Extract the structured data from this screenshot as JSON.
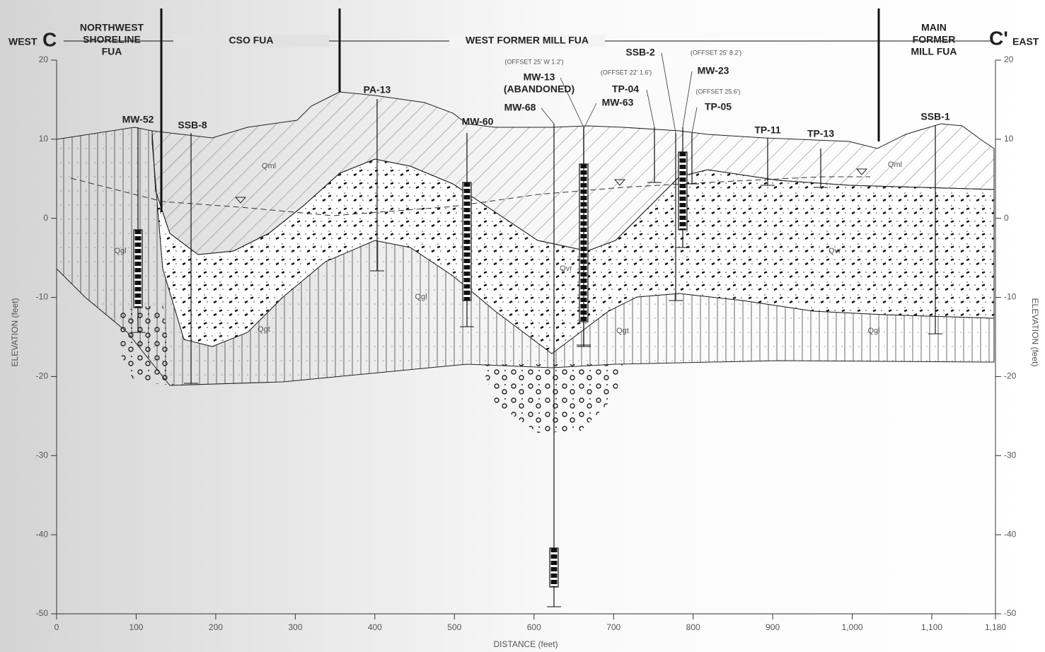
{
  "header": {
    "west": "WEST",
    "section_start": "C",
    "section_end": "C'",
    "east": "EAST"
  },
  "zones": [
    {
      "lines": [
        "NORTHWEST",
        "SHORELINE",
        "FUA"
      ]
    },
    {
      "lines": [
        "CSO FUA"
      ]
    },
    {
      "lines": [
        "WEST FORMER MILL FUA"
      ]
    },
    {
      "lines": [
        "MAIN",
        "FORMER",
        "MILL FUA"
      ]
    }
  ],
  "borings": [
    {
      "lines": [
        "MW-52"
      ]
    },
    {
      "lines": [
        "SSB-8"
      ]
    },
    {
      "lines": [
        "PA-13"
      ]
    },
    {
      "lines": [
        "MW-60"
      ]
    },
    {
      "lines": [
        "MW-68"
      ]
    },
    {
      "lines": [
        "MW-13",
        "(ABANDONED)"
      ]
    },
    {
      "lines": [
        "MW-63"
      ]
    },
    {
      "lines": [
        "TP-04"
      ]
    },
    {
      "lines": [
        "SSB-2"
      ]
    },
    {
      "lines": [
        "MW-23"
      ]
    },
    {
      "lines": [
        "TP-05"
      ]
    },
    {
      "lines": [
        "TP-11"
      ]
    },
    {
      "lines": [
        "TP-13"
      ]
    },
    {
      "lines": [
        "SSB-1"
      ]
    }
  ],
  "notes": [
    "(OFFSET 25' W 1.2')",
    "(OFFSET 22' 1.6')",
    "(OFFSET 25' 8.2')",
    "(OFFSET 25.6')"
  ],
  "units": [
    "Qml",
    "Qml",
    "Qgl",
    "Qgl",
    "Qgl",
    "Qvr",
    "Qvr",
    "Qgt",
    "Qgt"
  ],
  "axes": {
    "y_label": "ELEVATION (feet)",
    "x_label": "DISTANCE (feet)",
    "ylim": [
      -50,
      20
    ],
    "xlim": [
      0,
      1180
    ],
    "yticks": [
      20,
      10,
      0,
      -10,
      -20,
      -30,
      -40,
      -50
    ],
    "xticks": [
      0,
      100,
      200,
      300,
      400,
      500,
      600,
      700,
      800,
      900,
      {
        "value": 1000,
        "label": "1,000"
      },
      {
        "value": 1100,
        "label": "1,100"
      },
      {
        "value": 1180,
        "label": "1,180"
      }
    ]
  }
}
